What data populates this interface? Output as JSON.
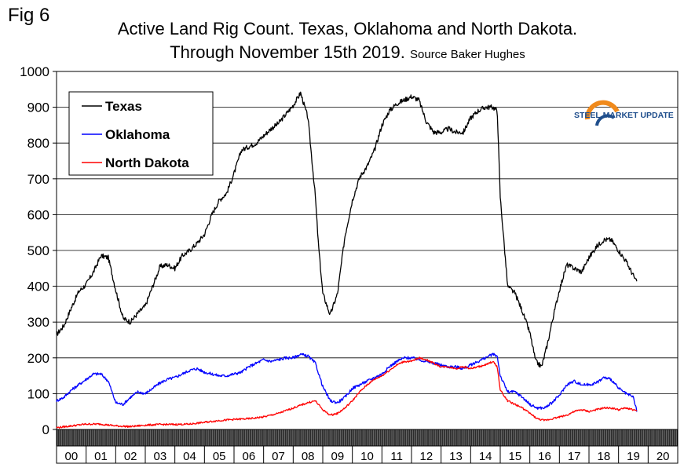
{
  "figure_label": "Fig 6",
  "title_line1": "Active Land Rig Count. Texas, Oklahoma and North Dakota.",
  "title_line2": "Through November 15th 2019.",
  "source": "Source Baker Hughes",
  "logo_text": "STEEL MARKET UPDATE",
  "colors": {
    "texas": "#000000",
    "oklahoma": "#0000ff",
    "north_dakota": "#ff0000",
    "logo_orange": "#f08a1c",
    "logo_blue": "#1f4e8c"
  },
  "chart_data": {
    "type": "line",
    "title": "Active Land Rig Count. Texas, Oklahoma and North Dakota. Through November 15th 2019.",
    "xlabel": "",
    "ylabel": "",
    "ylim": [
      0,
      1000
    ],
    "xlim": [
      2000,
      2021
    ],
    "yticks": [
      "0",
      "100",
      "200",
      "300",
      "400",
      "500",
      "600",
      "700",
      "800",
      "900",
      "1000"
    ],
    "xticks": [
      "00",
      "01",
      "02",
      "03",
      "04",
      "05",
      "06",
      "07",
      "08",
      "09",
      "10",
      "11",
      "12",
      "13",
      "14",
      "15",
      "16",
      "17",
      "18",
      "19",
      "20"
    ],
    "grid": true,
    "legend_position": "top-left",
    "series": [
      {
        "name": "Texas",
        "x": [
          2000.0,
          2000.25,
          2000.5,
          2000.75,
          2001.0,
          2001.25,
          2001.5,
          2001.75,
          2002.0,
          2002.25,
          2002.5,
          2002.75,
          2003.0,
          2003.25,
          2003.5,
          2003.75,
          2004.0,
          2004.25,
          2004.5,
          2004.75,
          2005.0,
          2005.25,
          2005.5,
          2005.75,
          2006.0,
          2006.25,
          2006.5,
          2006.75,
          2007.0,
          2007.25,
          2007.5,
          2007.75,
          2008.0,
          2008.25,
          2008.5,
          2008.75,
          2008.85,
          2009.0,
          2009.25,
          2009.5,
          2009.75,
          2010.0,
          2010.25,
          2010.5,
          2010.75,
          2011.0,
          2011.25,
          2011.5,
          2011.75,
          2012.0,
          2012.25,
          2012.5,
          2012.75,
          2013.0,
          2013.25,
          2013.5,
          2013.75,
          2014.0,
          2014.25,
          2014.5,
          2014.75,
          2014.9,
          2015.0,
          2015.25,
          2015.5,
          2015.75,
          2016.0,
          2016.2,
          2016.4,
          2016.6,
          2016.75,
          2017.0,
          2017.25,
          2017.5,
          2017.75,
          2018.0,
          2018.25,
          2018.5,
          2018.75,
          2019.0,
          2019.25,
          2019.5,
          2019.62
        ],
        "y": [
          265,
          290,
          340,
          385,
          405,
          440,
          485,
          480,
          390,
          310,
          300,
          325,
          345,
          400,
          455,
          460,
          450,
          485,
          500,
          520,
          545,
          600,
          640,
          660,
          715,
          780,
          790,
          800,
          820,
          840,
          855,
          880,
          905,
          940,
          870,
          650,
          520,
          380,
          320,
          380,
          540,
          640,
          705,
          735,
          780,
          850,
          890,
          910,
          920,
          930,
          920,
          860,
          830,
          830,
          840,
          830,
          830,
          870,
          890,
          900,
          900,
          890,
          650,
          400,
          380,
          330,
          270,
          190,
          175,
          240,
          300,
          390,
          460,
          450,
          440,
          480,
          510,
          530,
          530,
          500,
          470,
          430,
          410
        ]
      },
      {
        "name": "Oklahoma",
        "x": [
          2000.0,
          2000.25,
          2000.5,
          2000.75,
          2001.0,
          2001.25,
          2001.5,
          2001.75,
          2002.0,
          2002.25,
          2002.5,
          2002.75,
          2003.0,
          2003.25,
          2003.5,
          2003.75,
          2004.0,
          2004.25,
          2004.5,
          2004.75,
          2005.0,
          2005.25,
          2005.5,
          2005.75,
          2006.0,
          2006.25,
          2006.5,
          2006.75,
          2007.0,
          2007.25,
          2007.5,
          2007.75,
          2008.0,
          2008.25,
          2008.5,
          2008.75,
          2009.0,
          2009.25,
          2009.5,
          2009.75,
          2010.0,
          2010.25,
          2010.5,
          2010.75,
          2011.0,
          2011.25,
          2011.5,
          2011.75,
          2012.0,
          2012.25,
          2012.5,
          2012.75,
          2013.0,
          2013.25,
          2013.5,
          2013.75,
          2014.0,
          2014.25,
          2014.5,
          2014.75,
          2014.9,
          2015.0,
          2015.25,
          2015.5,
          2015.75,
          2016.0,
          2016.25,
          2016.5,
          2016.75,
          2017.0,
          2017.25,
          2017.5,
          2017.75,
          2018.0,
          2018.25,
          2018.5,
          2018.75,
          2019.0,
          2019.25,
          2019.5,
          2019.62
        ],
        "y": [
          80,
          90,
          110,
          125,
          140,
          155,
          155,
          135,
          75,
          70,
          90,
          105,
          100,
          115,
          130,
          140,
          145,
          155,
          165,
          170,
          160,
          155,
          150,
          150,
          155,
          160,
          175,
          185,
          195,
          190,
          195,
          200,
          200,
          210,
          205,
          185,
          120,
          80,
          75,
          90,
          115,
          125,
          135,
          145,
          155,
          175,
          190,
          200,
          200,
          195,
          190,
          185,
          180,
          175,
          175,
          170,
          180,
          190,
          200,
          210,
          205,
          150,
          105,
          105,
          90,
          70,
          60,
          60,
          75,
          95,
          125,
          135,
          125,
          125,
          130,
          145,
          140,
          115,
          100,
          90,
          50
        ]
      },
      {
        "name": "North Dakota",
        "x": [
          2000.0,
          2000.5,
          2001.0,
          2001.5,
          2002.0,
          2002.5,
          2003.0,
          2003.5,
          2004.0,
          2004.5,
          2005.0,
          2005.5,
          2006.0,
          2006.5,
          2007.0,
          2007.5,
          2008.0,
          2008.5,
          2008.75,
          2009.0,
          2009.25,
          2009.5,
          2009.75,
          2010.0,
          2010.25,
          2010.5,
          2010.75,
          2011.0,
          2011.25,
          2011.5,
          2011.75,
          2012.0,
          2012.25,
          2012.5,
          2012.75,
          2013.0,
          2013.25,
          2013.5,
          2013.75,
          2014.0,
          2014.25,
          2014.5,
          2014.75,
          2014.9,
          2015.0,
          2015.25,
          2015.5,
          2015.75,
          2016.0,
          2016.25,
          2016.5,
          2016.75,
          2017.0,
          2017.25,
          2017.5,
          2017.75,
          2018.0,
          2018.25,
          2018.5,
          2018.75,
          2019.0,
          2019.25,
          2019.5,
          2019.62
        ],
        "y": [
          5,
          10,
          15,
          15,
          10,
          8,
          12,
          14,
          14,
          15,
          20,
          25,
          28,
          30,
          35,
          45,
          60,
          75,
          80,
          55,
          40,
          45,
          60,
          80,
          105,
          125,
          140,
          150,
          165,
          180,
          190,
          190,
          200,
          195,
          185,
          175,
          175,
          170,
          175,
          170,
          175,
          180,
          190,
          175,
          110,
          80,
          70,
          60,
          45,
          30,
          25,
          30,
          35,
          40,
          50,
          55,
          50,
          55,
          60,
          60,
          55,
          60,
          55,
          50
        ]
      }
    ]
  }
}
